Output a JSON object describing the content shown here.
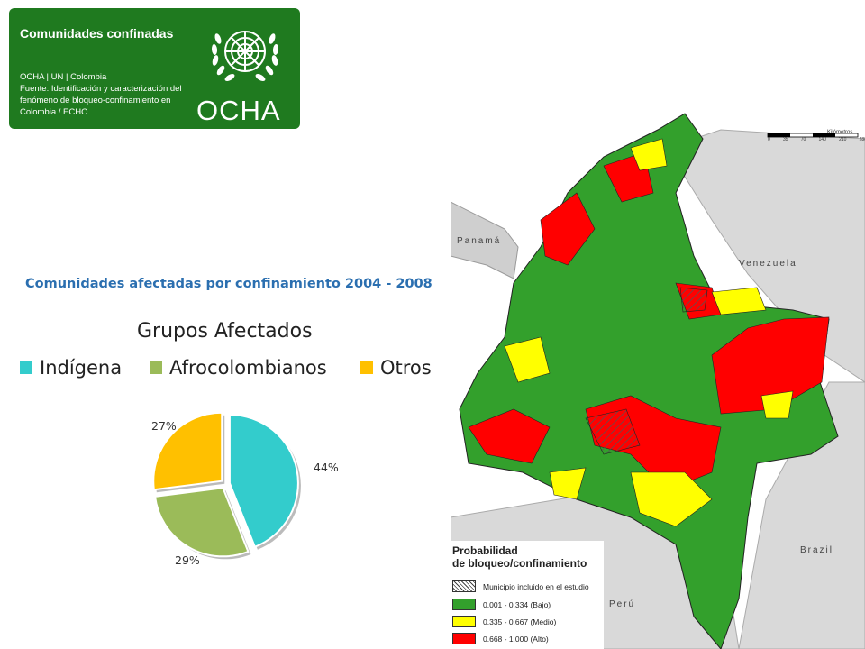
{
  "header": {
    "title": "Comunidades confinadas",
    "org_line": "OCHA | UN | Colombia",
    "source_lines": [
      "Fuente: Identificación y caracterización del",
      "fenómeno de bloqueo-confinamiento en",
      "Colombia / ECHO"
    ],
    "logo_text": "OCHA",
    "bg_color": "#1f7a1f"
  },
  "section_title": "Comunidades afectadas por confinamiento 2004 - 2008",
  "chart_data": {
    "type": "pie",
    "title": "Grupos Afectados",
    "categories": [
      "Indígena",
      "Afrocolombianos",
      "Otros"
    ],
    "values": [
      44,
      29,
      27
    ],
    "labels": [
      "44%",
      "29%",
      "27%"
    ],
    "colors": [
      "#33cccc",
      "#9bbb59",
      "#ffc000"
    ],
    "legend_position": "top"
  },
  "map": {
    "country_labels": {
      "panama": "Panamá",
      "venezuela": "Venezuela",
      "brazil": "Brazil",
      "peru": "Perú"
    },
    "scale_label": "Kilómetros",
    "scale_ticks": [
      "0",
      "35",
      "70",
      "140",
      "210",
      "280"
    ],
    "legend": {
      "title_line1": "Probabilidad",
      "title_line2": "de bloqueo/confinamiento",
      "items": [
        {
          "label": "Municipio incluido en el estudio",
          "color": "#ffffff",
          "hatched": true
        },
        {
          "label": "0.001 - 0.334 (Bajo)",
          "color": "#33a02c"
        },
        {
          "label": "0.335 - 0.667 (Medio)",
          "color": "#ffff00"
        },
        {
          "label": "0.668 - 1.000 (Alto)",
          "color": "#ff0000"
        }
      ]
    }
  }
}
